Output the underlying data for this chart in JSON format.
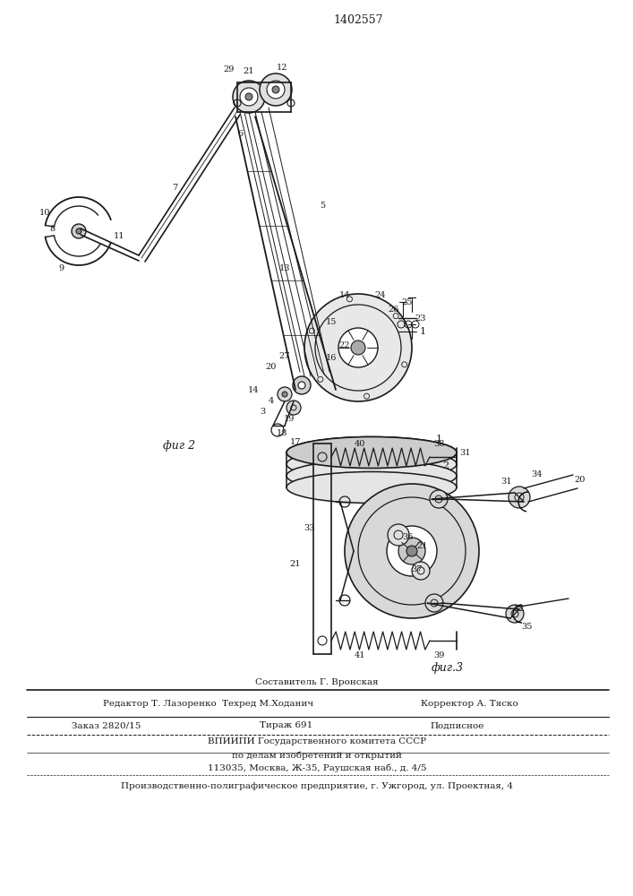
{
  "patent_number": "1402557",
  "fig2_label": "фиг 2",
  "fig3_label": "фиг.3",
  "bg_color": "#ffffff",
  "line_color": "#1a1a1a",
  "footer": {
    "sostavitel": "Составитель Г. Вронская",
    "redaktor": "Редактор Т. Лазоренко",
    "tehred": "Техред М.Ходанич",
    "korrektor": "Корректор А. Тяско",
    "zakaz": "Заказ 2820/15",
    "tirazh": "Тираж 691",
    "podpisnoe": "Подписное",
    "vniipи1": "ВПИИПИ Государственного комитета СССР",
    "vniipи2": "по делам изобретений и открытий",
    "address": "113035, Москва, Ж-35, Раушская наб., д. 4/5",
    "production": "Производственно-полиграфическое предприятие, г. Ужгород, ул. Проектная, 4"
  }
}
